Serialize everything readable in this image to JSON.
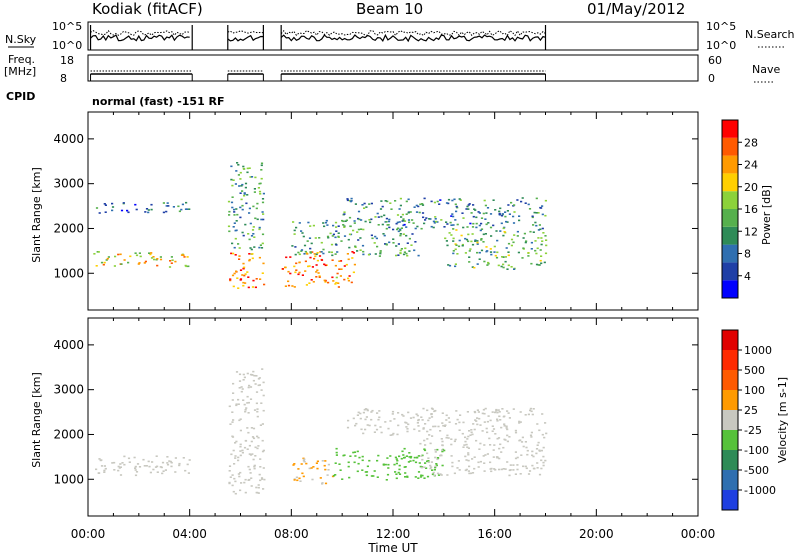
{
  "header": {
    "title": "Kodiak (fitACF)",
    "beam": "Beam 10",
    "date": "01/May/2012"
  },
  "top_panels": {
    "nsky_label": "N.Sky",
    "nsky_ticks": [
      "10^5",
      "10^0"
    ],
    "nsearch_label": "N.Search",
    "nsearch_ticks": [
      "10^5",
      "10^0"
    ],
    "freq_label": "Freq.",
    "freq_unit": "[MHz]",
    "freq_ticks": [
      "18",
      "8"
    ],
    "nave_label": "Nave",
    "nave_ticks": [
      "60",
      "0"
    ],
    "cpid_label": "CPID",
    "cpid_text": "normal (fast) -151 RF"
  },
  "axes": {
    "ylabel": "Slant Range [km]",
    "yticks": [
      "4000",
      "3000",
      "2000",
      "1000"
    ],
    "xlabel": "Time UT",
    "xticks": [
      "00:00",
      "04:00",
      "08:00",
      "12:00",
      "16:00",
      "20:00",
      "00:00"
    ]
  },
  "power_colorbar": {
    "label": "Power [dB]",
    "ticks": [
      "28",
      "24",
      "20",
      "16",
      "12",
      "8",
      "4"
    ],
    "colors": [
      "#0000ff",
      "#1f3fa6",
      "#2f6fb0",
      "#2e8b57",
      "#56b04d",
      "#8cd23a",
      "#ffcf00",
      "#ff9a00",
      "#ff5a00",
      "#ff0000"
    ]
  },
  "velocity_colorbar": {
    "label": "Velocity [m s-1]",
    "ticks": [
      "1000",
      "500",
      "100",
      "25",
      "-25",
      "-100",
      "-500",
      "-1000"
    ],
    "colors": [
      "#1f3fe0",
      "#2f6fb0",
      "#2e8b57",
      "#56c23a",
      "#c8c8c0",
      "#ff9a00",
      "#ff5a00",
      "#ff2a00",
      "#e00000"
    ]
  },
  "chart_data": [
    {
      "type": "heatmap",
      "title": "Power",
      "xlabel": "Time UT",
      "ylabel": "Slant Range [km]",
      "xlim": [
        0,
        24
      ],
      "ylim": [
        180,
        4600
      ],
      "colorbar": {
        "label": "Power [dB]",
        "range": [
          0,
          32
        ]
      },
      "data_gaps_hours": [
        [
          4.2,
          5.5
        ],
        [
          6.9,
          7.6
        ],
        [
          18.0,
          24.0
        ]
      ],
      "bands": [
        {
          "t0": 0.2,
          "t1": 4.1,
          "range_km": [
            1150,
            1500
          ],
          "power_db": 20
        },
        {
          "t0": 0.3,
          "t1": 4.1,
          "range_km": [
            2350,
            2600
          ],
          "power_db": 8
        },
        {
          "t0": 5.5,
          "t1": 6.9,
          "range_km": [
            650,
            1500
          ],
          "power_db": 26
        },
        {
          "t0": 5.5,
          "t1": 6.9,
          "range_km": [
            1500,
            3500
          ],
          "power_db": 12
        },
        {
          "t0": 7.6,
          "t1": 10.5,
          "range_km": [
            700,
            1500
          ],
          "power_db": 26
        },
        {
          "t0": 8.0,
          "t1": 13.0,
          "range_km": [
            1400,
            2200
          ],
          "power_db": 12
        },
        {
          "t0": 10.0,
          "t1": 18.0,
          "range_km": [
            2000,
            2700
          ],
          "power_db": 10
        },
        {
          "t0": 14.0,
          "t1": 18.0,
          "range_km": [
            1100,
            2000
          ],
          "power_db": 14
        }
      ]
    },
    {
      "type": "heatmap",
      "title": "Velocity",
      "xlabel": "Time UT",
      "ylabel": "Slant Range [km]",
      "xlim": [
        0,
        24
      ],
      "ylim": [
        180,
        4600
      ],
      "colorbar": {
        "label": "Velocity [m s-1]",
        "range": [
          -1000,
          1000
        ]
      },
      "data_gaps_hours": [
        [
          4.2,
          5.5
        ],
        [
          6.9,
          7.6
        ],
        [
          18.0,
          24.0
        ]
      ],
      "bands": [
        {
          "t0": 0.2,
          "t1": 4.1,
          "range_km": [
            1100,
            1550
          ],
          "velocity_ms": 0
        },
        {
          "t0": 5.5,
          "t1": 6.9,
          "range_km": [
            650,
            3500
          ],
          "velocity_ms": 0
        },
        {
          "t0": 8.0,
          "t1": 9.6,
          "range_km": [
            900,
            1500
          ],
          "velocity_ms": 120
        },
        {
          "t0": 9.6,
          "t1": 14.0,
          "range_km": [
            1000,
            1700
          ],
          "velocity_ms": -150
        },
        {
          "t0": 10.0,
          "t1": 18.0,
          "range_km": [
            2000,
            2600
          ],
          "velocity_ms": 0
        },
        {
          "t0": 13.0,
          "t1": 18.0,
          "range_km": [
            1100,
            2000
          ],
          "velocity_ms": 0
        }
      ]
    }
  ]
}
